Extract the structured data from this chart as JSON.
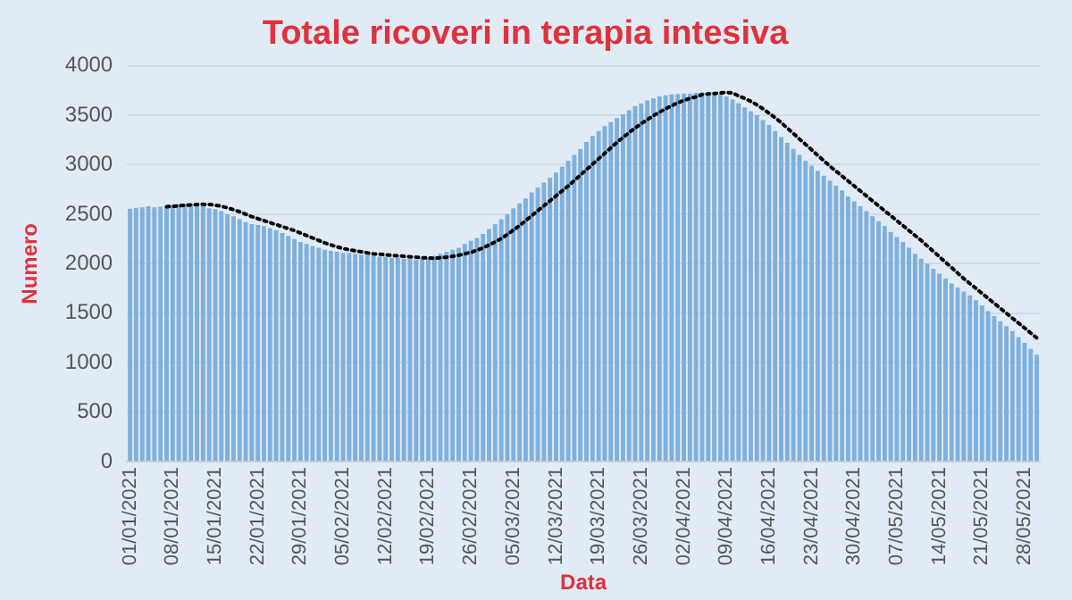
{
  "chart_data": {
    "type": "bar",
    "title": "Totale ricoveri in terapia intesiva",
    "xlabel": "Data",
    "ylabel": "Numero",
    "categories": [
      "01/01/2021",
      null,
      null,
      null,
      null,
      null,
      null,
      "08/01/2021",
      null,
      null,
      null,
      null,
      null,
      null,
      "15/01/2021",
      null,
      null,
      null,
      null,
      null,
      null,
      "22/01/2021",
      null,
      null,
      null,
      null,
      null,
      null,
      "29/01/2021",
      null,
      null,
      null,
      null,
      null,
      null,
      "05/02/2021",
      null,
      null,
      null,
      null,
      null,
      null,
      "12/02/2021",
      null,
      null,
      null,
      null,
      null,
      null,
      "19/02/2021",
      null,
      null,
      null,
      null,
      null,
      null,
      "26/02/2021",
      null,
      null,
      null,
      null,
      null,
      null,
      "05/03/2021",
      null,
      null,
      null,
      null,
      null,
      null,
      "12/03/2021",
      null,
      null,
      null,
      null,
      null,
      null,
      "19/03/2021",
      null,
      null,
      null,
      null,
      null,
      null,
      "26/03/2021",
      null,
      null,
      null,
      null,
      null,
      null,
      "02/04/2021",
      null,
      null,
      null,
      null,
      null,
      null,
      "09/04/2021",
      null,
      null,
      null,
      null,
      null,
      null,
      "16/04/2021",
      null,
      null,
      null,
      null,
      null,
      null,
      "23/04/2021",
      null,
      null,
      null,
      null,
      null,
      null,
      "30/04/2021",
      null,
      null,
      null,
      null,
      null,
      null,
      "07/05/2021",
      null,
      null,
      null,
      null,
      null,
      null,
      "14/05/2021",
      null,
      null,
      null,
      null,
      null,
      null,
      "21/05/2021",
      null,
      null,
      null,
      null,
      null,
      null,
      "28/05/2021",
      null,
      null
    ],
    "series": [
      {
        "color": "#7fb0dc",
        "values": [
          2555,
          2565,
          2570,
          2580,
          2570,
          2575,
          2580,
          2590,
          2600,
          2605,
          2600,
          2590,
          2580,
          2560,
          2550,
          2530,
          2500,
          2480,
          2450,
          2420,
          2400,
          2390,
          2380,
          2360,
          2340,
          2310,
          2280,
          2250,
          2220,
          2200,
          2180,
          2160,
          2140,
          2130,
          2120,
          2110,
          2110,
          2100,
          2090,
          2090,
          2080,
          2070,
          2070,
          2060,
          2060,
          2050,
          2050,
          2040,
          2050,
          2060,
          2080,
          2100,
          2120,
          2140,
          2160,
          2200,
          2230,
          2260,
          2300,
          2350,
          2400,
          2450,
          2500,
          2560,
          2610,
          2660,
          2720,
          2770,
          2820,
          2870,
          2920,
          2980,
          3040,
          3100,
          3160,
          3230,
          3290,
          3340,
          3390,
          3430,
          3470,
          3510,
          3550,
          3590,
          3620,
          3650,
          3670,
          3690,
          3700,
          3710,
          3715,
          3720,
          3720,
          3725,
          3730,
          3730,
          3720,
          3710,
          3690,
          3660,
          3620,
          3580,
          3540,
          3500,
          3450,
          3400,
          3340,
          3280,
          3220,
          3160,
          3100,
          3040,
          2990,
          2940,
          2890,
          2840,
          2790,
          2740,
          2680,
          2630,
          2580,
          2530,
          2480,
          2430,
          2380,
          2320,
          2270,
          2220,
          2160,
          2100,
          2050,
          2000,
          1950,
          1900,
          1850,
          1800,
          1760,
          1720,
          1680,
          1630,
          1580,
          1520,
          1470,
          1420,
          1370,
          1320,
          1260,
          1200,
          1140,
          1080
        ]
      },
      {
        "type": "line",
        "color": "#000000",
        "line_style": "dotted",
        "marker": "none",
        "values": [
          null,
          null,
          null,
          null,
          null,
          null,
          2575,
          2580,
          2585,
          2590,
          2595,
          2598,
          2600,
          2598,
          2592,
          2580,
          2565,
          2545,
          2525,
          2500,
          2475,
          2455,
          2435,
          2415,
          2395,
          2375,
          2355,
          2335,
          2310,
          2285,
          2260,
          2235,
          2210,
          2190,
          2170,
          2155,
          2140,
          2130,
          2120,
          2110,
          2100,
          2095,
          2090,
          2085,
          2080,
          2075,
          2070,
          2065,
          2060,
          2058,
          2055,
          2060,
          2065,
          2075,
          2085,
          2100,
          2115,
          2135,
          2160,
          2190,
          2220,
          2255,
          2295,
          2340,
          2385,
          2435,
          2485,
          2535,
          2585,
          2635,
          2685,
          2735,
          2785,
          2840,
          2895,
          2950,
          3005,
          3060,
          3115,
          3170,
          3225,
          3275,
          3325,
          3370,
          3415,
          3455,
          3495,
          3530,
          3565,
          3595,
          3625,
          3650,
          3670,
          3685,
          3708,
          3715,
          3720,
          3725,
          3730,
          3725,
          3695,
          3670,
          3640,
          3605,
          3565,
          3520,
          3475,
          3425,
          3370,
          3315,
          3260,
          3205,
          3150,
          3095,
          3040,
          2985,
          2935,
          2885,
          2835,
          2785,
          2735,
          2685,
          2635,
          2585,
          2535,
          2485,
          2435,
          2385,
          2335,
          2285,
          2235,
          2180,
          2125,
          2070,
          2015,
          1960,
          1905,
          1850,
          1800,
          1750,
          1700,
          1650,
          1600,
          1550,
          1500,
          1450,
          1400,
          1350,
          1300,
          1250
        ]
      }
    ],
    "ylim": [
      0,
      4000
    ],
    "yticks": [
      0,
      500,
      1000,
      1500,
      2000,
      2500,
      3000,
      3500,
      4000
    ],
    "grid": "y"
  }
}
